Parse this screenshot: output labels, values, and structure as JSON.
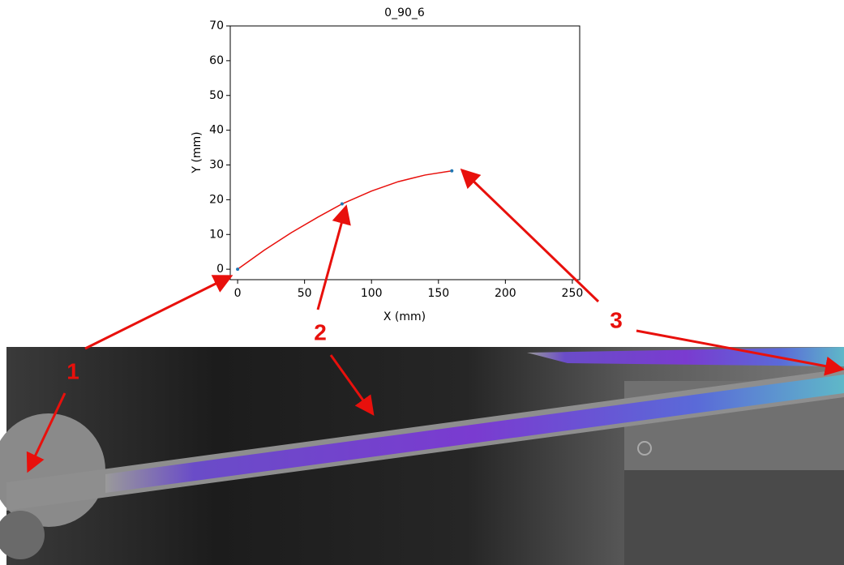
{
  "chart_data": {
    "type": "line",
    "title": "0_90_6",
    "xlabel": "X (mm)",
    "ylabel": "Y (mm)",
    "x": [
      0,
      20,
      40,
      60,
      78,
      100,
      120,
      140,
      160
    ],
    "series": [
      {
        "color": "#e8100c",
        "values": [
          0,
          5.5,
          10.5,
          15,
          18.8,
          22.5,
          25.2,
          27.1,
          28.3
        ]
      },
      {
        "color": "#1f77b4",
        "values": [
          0,
          null,
          null,
          null,
          18.8,
          null,
          null,
          null,
          28.3
        ]
      }
    ],
    "xlim": [
      -5.5,
      255.5
    ],
    "ylim": [
      -3,
      70
    ],
    "xticks": [
      0,
      50,
      100,
      150,
      200,
      250
    ],
    "yticks": [
      0,
      10,
      20,
      30,
      40,
      50,
      60,
      70
    ],
    "annotations": [
      "1",
      "2",
      "3"
    ]
  }
}
